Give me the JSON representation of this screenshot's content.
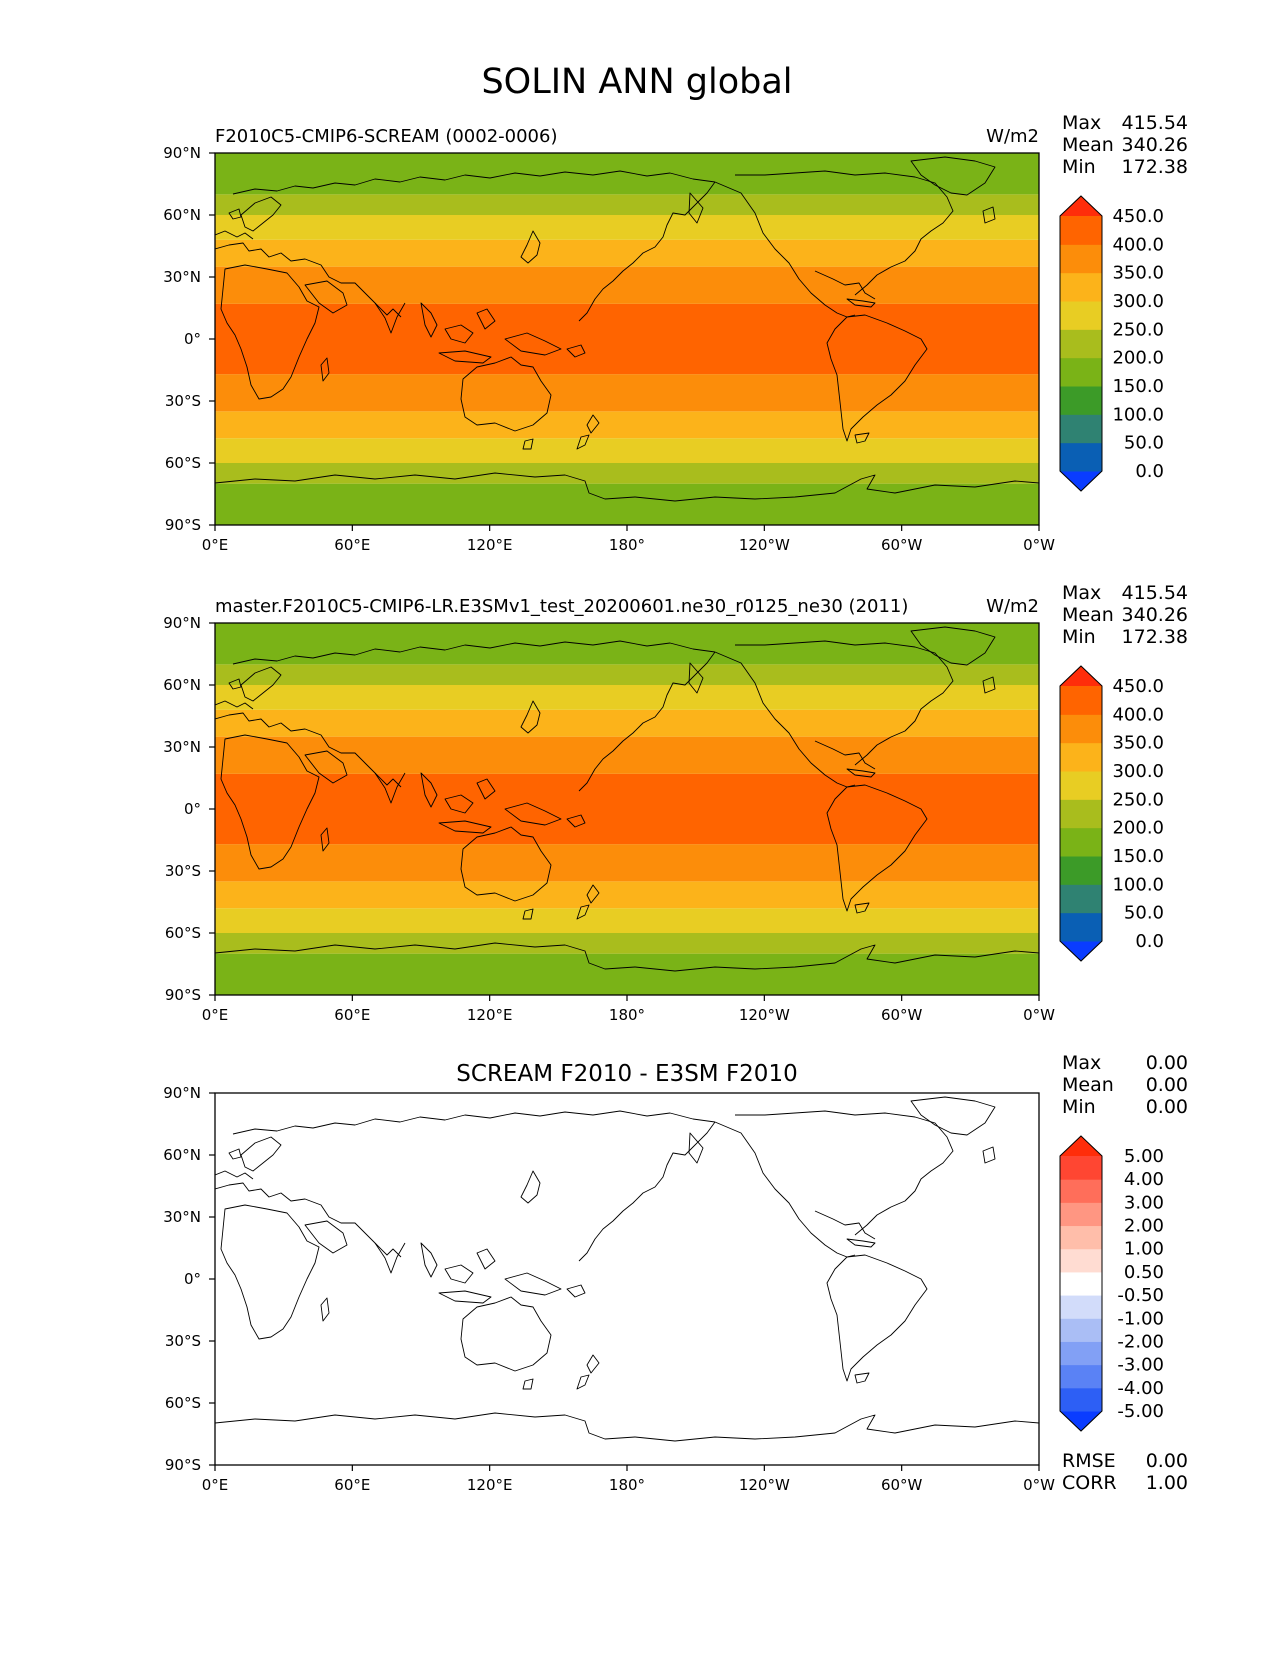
{
  "figure": {
    "title": "SOLIN ANN global"
  },
  "axes": {
    "lat_ticks": [
      "90°N",
      "60°N",
      "30°N",
      "0°",
      "30°S",
      "60°S",
      "90°S"
    ],
    "lon_ticks": [
      "0°E",
      "60°E",
      "120°E",
      "180°",
      "120°W",
      "60°W",
      "0°W"
    ]
  },
  "stat_labels": {
    "max": "Max",
    "mean": "Mean",
    "min": "Min",
    "rmse": "RMSE",
    "corr": "CORR"
  },
  "panels": [
    {
      "title_left": "F2010C5-CMIP6-SCREAM (0002-0006)",
      "title_center": "",
      "units": "W/m2",
      "stats": {
        "max": "415.54",
        "mean": "340.26",
        "min": "172.38"
      },
      "colorbar": {
        "tick_labels": [
          "450.0",
          "400.0",
          "350.0",
          "300.0",
          "250.0",
          "200.0",
          "150.0",
          "100.0",
          "50.0",
          "0.0"
        ],
        "colors": [
          "#0a3cff",
          "#0a5fb4",
          "#2f8272",
          "#3c9b28",
          "#7ab317",
          "#a9bd1d",
          "#e8cd23",
          "#fcb31a",
          "#fc8d0a",
          "#ff6400",
          "#ff2d0a"
        ]
      },
      "field": {
        "type": "zonal_bands",
        "bands": [
          {
            "lat_range": [
              -90,
              -70
            ],
            "color": "#7ab317"
          },
          {
            "lat_range": [
              -70,
              -60
            ],
            "color": "#a9bd1d"
          },
          {
            "lat_range": [
              -60,
              -48
            ],
            "color": "#e8cd23"
          },
          {
            "lat_range": [
              -48,
              -35
            ],
            "color": "#fcb31a"
          },
          {
            "lat_range": [
              -35,
              -17
            ],
            "color": "#fc8d0a"
          },
          {
            "lat_range": [
              -17,
              17
            ],
            "color": "#ff6400"
          },
          {
            "lat_range": [
              17,
              35
            ],
            "color": "#fc8d0a"
          },
          {
            "lat_range": [
              35,
              48
            ],
            "color": "#fcb31a"
          },
          {
            "lat_range": [
              48,
              60
            ],
            "color": "#e8cd23"
          },
          {
            "lat_range": [
              60,
              70
            ],
            "color": "#a9bd1d"
          },
          {
            "lat_range": [
              70,
              90
            ],
            "color": "#7ab317"
          }
        ]
      }
    },
    {
      "title_left": "master.F2010C5-CMIP6-LR.E3SMv1_test_20200601.ne30_r0125_ne30 (2011)",
      "title_center": "",
      "units": "W/m2",
      "stats": {
        "max": "415.54",
        "mean": "340.26",
        "min": "172.38"
      },
      "colorbar": {
        "tick_labels": [
          "450.0",
          "400.0",
          "350.0",
          "300.0",
          "250.0",
          "200.0",
          "150.0",
          "100.0",
          "50.0",
          "0.0"
        ],
        "colors": [
          "#0a3cff",
          "#0a5fb4",
          "#2f8272",
          "#3c9b28",
          "#7ab317",
          "#a9bd1d",
          "#e8cd23",
          "#fcb31a",
          "#fc8d0a",
          "#ff6400",
          "#ff2d0a"
        ]
      },
      "field": {
        "type": "zonal_bands",
        "bands": [
          {
            "lat_range": [
              -90,
              -70
            ],
            "color": "#7ab317"
          },
          {
            "lat_range": [
              -70,
              -60
            ],
            "color": "#a9bd1d"
          },
          {
            "lat_range": [
              -60,
              -48
            ],
            "color": "#e8cd23"
          },
          {
            "lat_range": [
              -48,
              -35
            ],
            "color": "#fcb31a"
          },
          {
            "lat_range": [
              -35,
              -17
            ],
            "color": "#fc8d0a"
          },
          {
            "lat_range": [
              -17,
              17
            ],
            "color": "#ff6400"
          },
          {
            "lat_range": [
              17,
              35
            ],
            "color": "#fc8d0a"
          },
          {
            "lat_range": [
              35,
              48
            ],
            "color": "#fcb31a"
          },
          {
            "lat_range": [
              48,
              60
            ],
            "color": "#e8cd23"
          },
          {
            "lat_range": [
              60,
              70
            ],
            "color": "#a9bd1d"
          },
          {
            "lat_range": [
              70,
              90
            ],
            "color": "#7ab317"
          }
        ]
      }
    },
    {
      "title_left": "",
      "title_center": "SCREAM F2010 - E3SM F2010",
      "units": "",
      "stats": {
        "max": "0.00",
        "mean": "0.00",
        "min": "0.00"
      },
      "extra_stats": {
        "rmse": "0.00",
        "corr": "1.00"
      },
      "colorbar": {
        "tick_labels": [
          "5.00",
          "4.00",
          "3.00",
          "2.00",
          "1.00",
          "0.50",
          "-0.50",
          "-1.00",
          "-2.00",
          "-3.00",
          "-4.00",
          "-5.00"
        ],
        "colors": [
          "#0a3cff",
          "#2d5ff5",
          "#5a82f5",
          "#82a0f5",
          "#aabef5",
          "#d2dcfa",
          "#ffffff",
          "#ffdcd2",
          "#ffbeaa",
          "#ff9682",
          "#ff6e5a",
          "#ff4632",
          "#ff2d0a"
        ]
      },
      "field": {
        "type": "blank",
        "color": "#ffffff"
      }
    }
  ]
}
